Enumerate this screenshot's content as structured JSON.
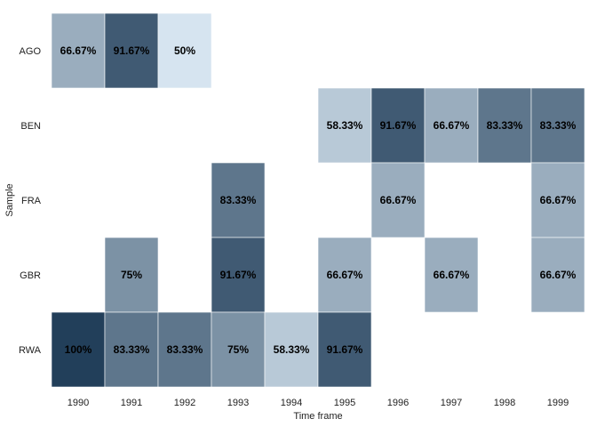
{
  "chart_data": {
    "type": "heatmap",
    "title": "",
    "xlabel": "Time frame",
    "ylabel": "Sample",
    "x": [
      "1990",
      "1991",
      "1992",
      "1993",
      "1994",
      "1995",
      "1996",
      "1997",
      "1998",
      "1999"
    ],
    "y": [
      "AGO",
      "BEN",
      "FRA",
      "GBR",
      "RWA"
    ],
    "legend": "none",
    "grid": false,
    "color_scale": {
      "low_value": 50,
      "high_value": 100,
      "low_color": "#d6e4f0",
      "high_color": "#223f5a"
    },
    "cells": [
      {
        "y": "AGO",
        "x": "1990",
        "value": 66.67,
        "label": "66.67%"
      },
      {
        "y": "AGO",
        "x": "1991",
        "value": 91.67,
        "label": "91.67%"
      },
      {
        "y": "AGO",
        "x": "1992",
        "value": 50,
        "label": "50%"
      },
      {
        "y": "BEN",
        "x": "1995",
        "value": 58.33,
        "label": "58.33%"
      },
      {
        "y": "BEN",
        "x": "1996",
        "value": 91.67,
        "label": "91.67%"
      },
      {
        "y": "BEN",
        "x": "1997",
        "value": 66.67,
        "label": "66.67%"
      },
      {
        "y": "BEN",
        "x": "1998",
        "value": 83.33,
        "label": "83.33%"
      },
      {
        "y": "BEN",
        "x": "1999",
        "value": 83.33,
        "label": "83.33%"
      },
      {
        "y": "FRA",
        "x": "1993",
        "value": 83.33,
        "label": "83.33%"
      },
      {
        "y": "FRA",
        "x": "1996",
        "value": 66.67,
        "label": "66.67%"
      },
      {
        "y": "FRA",
        "x": "1999",
        "value": 66.67,
        "label": "66.67%"
      },
      {
        "y": "GBR",
        "x": "1991",
        "value": 75,
        "label": "75%"
      },
      {
        "y": "GBR",
        "x": "1993",
        "value": 91.67,
        "label": "91.67%"
      },
      {
        "y": "GBR",
        "x": "1995",
        "value": 66.67,
        "label": "66.67%"
      },
      {
        "y": "GBR",
        "x": "1997",
        "value": 66.67,
        "label": "66.67%"
      },
      {
        "y": "GBR",
        "x": "1999",
        "value": 66.67,
        "label": "66.67%"
      },
      {
        "y": "RWA",
        "x": "1990",
        "value": 100,
        "label": "100%"
      },
      {
        "y": "RWA",
        "x": "1991",
        "value": 83.33,
        "label": "83.33%"
      },
      {
        "y": "RWA",
        "x": "1992",
        "value": 83.33,
        "label": "83.33%"
      },
      {
        "y": "RWA",
        "x": "1993",
        "value": 75,
        "label": "75%"
      },
      {
        "y": "RWA",
        "x": "1994",
        "value": 58.33,
        "label": "58.33%"
      },
      {
        "y": "RWA",
        "x": "1995",
        "value": 91.67,
        "label": "91.67%"
      }
    ]
  }
}
